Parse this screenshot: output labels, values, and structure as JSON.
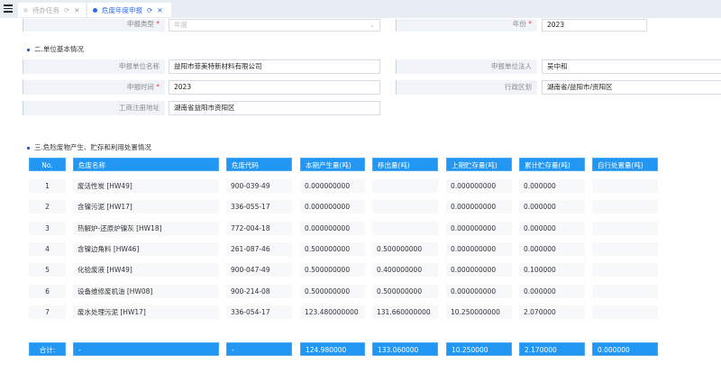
{
  "tabs": [
    {
      "label": "待办任务",
      "active": false
    },
    {
      "label": "危废年度申报",
      "active": true
    }
  ],
  "colors": {
    "accent": "#2196f3",
    "active_tab": "#2d6be4"
  },
  "form_top": {
    "type_label": "申报类型",
    "type_placeholder": "年度",
    "year_label": "年份",
    "year_value": "2023"
  },
  "section2": {
    "title": "二.单位基本情况",
    "unit_name_label": "申报单位名称",
    "unit_name": "益阳市菲美特新材料有限公司",
    "legal_label": "申报单位法人",
    "legal": "吴中和",
    "time_label": "申报时间",
    "time": "2023",
    "region_label": "行政区划",
    "region": "湖南省/益阳市/资阳区",
    "address_label": "工商注册地址",
    "address": "湖南省益阳市资阳区"
  },
  "section3": {
    "title": "三.危险废物产生、贮存和利用处置情况"
  },
  "table": {
    "headers": [
      "No.",
      "危废名称",
      "危废代码",
      "本期产生量(吨)",
      "移出量(吨)",
      "上期贮存量(吨)",
      "累计贮存量(吨)",
      "自行处置量(吨)"
    ],
    "rows": [
      [
        "1",
        "废活性炭 [HW49]",
        "900-039-49",
        "0.000000000",
        "",
        "0.000000000",
        "0.000000",
        ""
      ],
      [
        "2",
        "含镍污泥 [HW17]",
        "336-055-17",
        "0.000000000",
        "",
        "0.000000000",
        "0.000000",
        ""
      ],
      [
        "3",
        "热解炉-还原炉镍灰 [HW18]",
        "772-004-18",
        "0.000000000",
        "",
        "0.000000000",
        "0.000000",
        ""
      ],
      [
        "4",
        "含镍边角料 [HW46]",
        "261-087-46",
        "0.500000000",
        "0.500000000",
        "0.000000000",
        "0.000000",
        ""
      ],
      [
        "5",
        "化验废液 [HW49]",
        "900-047-49",
        "0.500000000",
        "0.400000000",
        "0.000000000",
        "0.100000",
        ""
      ],
      [
        "6",
        "设备维修废机油 [HW08]",
        "900-214-08",
        "0.500000000",
        "0.500000000",
        "0.000000000",
        "0.000000",
        ""
      ],
      [
        "7",
        "废水处理污泥 [HW17]",
        "336-054-17",
        "123.480000000",
        "131.660000000",
        "10.250000000",
        "2.070000",
        ""
      ]
    ],
    "totals": [
      "合计:",
      "-",
      "-",
      "124.980000",
      "133.060000",
      "10.250000",
      "2.170000",
      "0.000000"
    ]
  }
}
